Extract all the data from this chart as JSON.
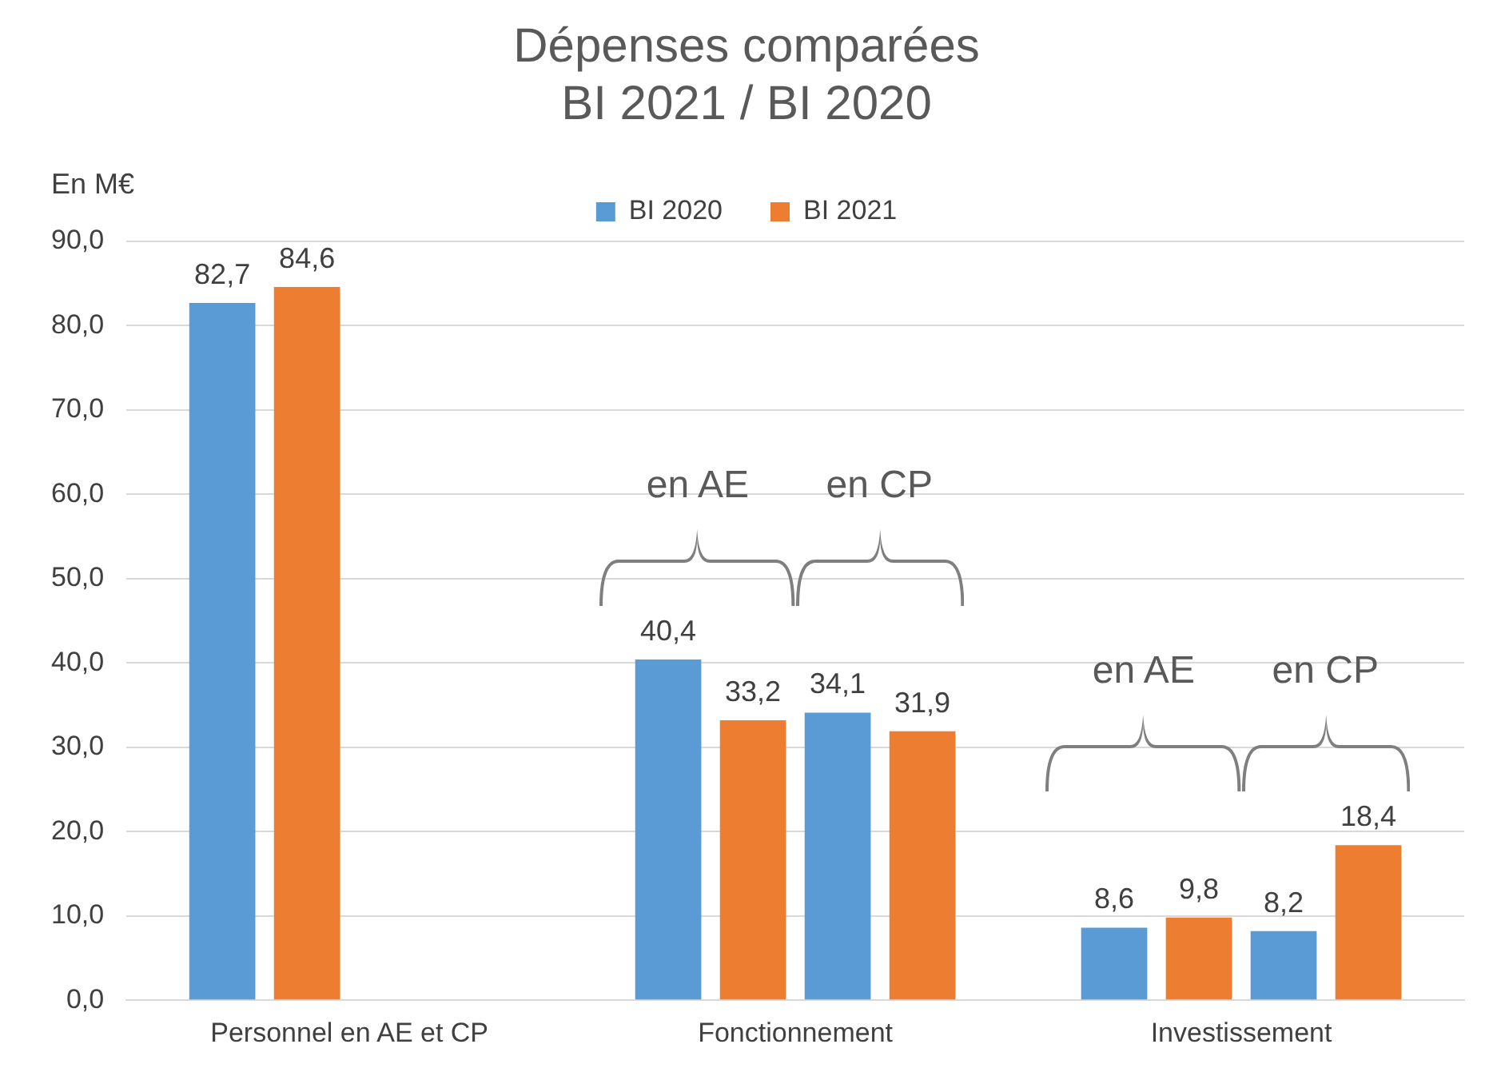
{
  "chart_data": {
    "type": "bar",
    "title": [
      "Dépenses comparées",
      "BI 2021 / BI 2020"
    ],
    "ylabel": "En M€",
    "categories": [
      "Personnel en AE et CP",
      "Fonctionnement",
      "Investissement"
    ],
    "series": [
      {
        "name": "BI 2020",
        "color": "#5b9bd5",
        "values": [
          82.7,
          40.4,
          8.6
        ],
        "value_labels": [
          "82,7",
          "40,4",
          "8,6"
        ]
      },
      {
        "name": "BI 2021",
        "color": "#ed7d31",
        "values": [
          84.6,
          33.2,
          9.8
        ],
        "value_labels": [
          "84,6",
          "33,2",
          "9,8"
        ]
      },
      {
        "color": "#5b9bd5",
        "values": [
          null,
          34.1,
          8.2
        ],
        "value_labels": [
          null,
          "34,1",
          "8,2"
        ]
      },
      {
        "color": "#ed7d31",
        "values": [
          null,
          31.9,
          18.4
        ],
        "value_labels": [
          null,
          "31,9",
          "18,4"
        ]
      }
    ],
    "ylim": [
      0,
      90
    ],
    "yticks": [
      {
        "value": 0,
        "label": "0,0"
      },
      {
        "value": 10,
        "label": "10,0"
      },
      {
        "value": 20,
        "label": "20,0"
      },
      {
        "value": 30,
        "label": "30,0"
      },
      {
        "value": 40,
        "label": "40,0"
      },
      {
        "value": 50,
        "label": "50,0"
      },
      {
        "value": 60,
        "label": "60,0"
      },
      {
        "value": 70,
        "label": "70,0"
      },
      {
        "value": 80,
        "label": "80,0"
      },
      {
        "value": 90,
        "label": "90,0"
      }
    ],
    "grid": "y",
    "legend": "top",
    "annotations": [
      "en AE",
      "en CP",
      "en AE",
      "en CP"
    ]
  }
}
